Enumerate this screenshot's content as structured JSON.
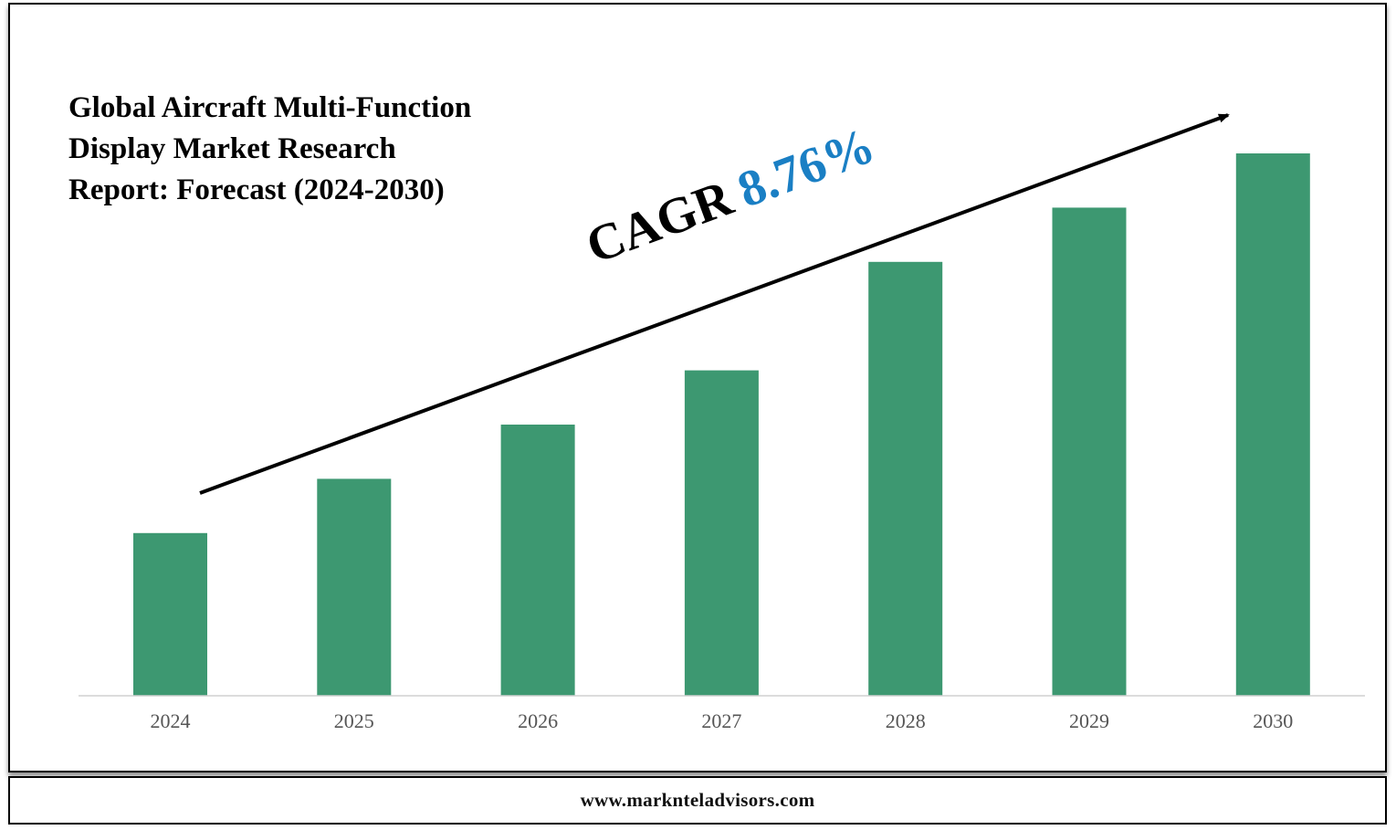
{
  "title_lines": [
    "Global Aircraft Multi-Function",
    "Display Market Research",
    "Report: Forecast (2024-2030)"
  ],
  "cagr": {
    "label": "CAGR",
    "value": "8.76%"
  },
  "footer": {
    "website": "www.marknteladvisors.com"
  },
  "colors": {
    "bar": "#3d9871",
    "cagr_value": "#1a7fc4",
    "axis_label": "#555555"
  },
  "chart_data": {
    "type": "bar",
    "title": "Global Aircraft Multi-Function Display Market Research Report: Forecast (2024-2030)",
    "categories": [
      "2024",
      "2025",
      "2026",
      "2027",
      "2028",
      "2029",
      "2030"
    ],
    "values": [
      30,
      40,
      50,
      60,
      80,
      90,
      100
    ],
    "ylim": [
      0,
      100
    ],
    "xlabel": "",
    "ylabel": "",
    "grid": false,
    "legend": "none",
    "annotation": "CAGR 8.76%"
  }
}
